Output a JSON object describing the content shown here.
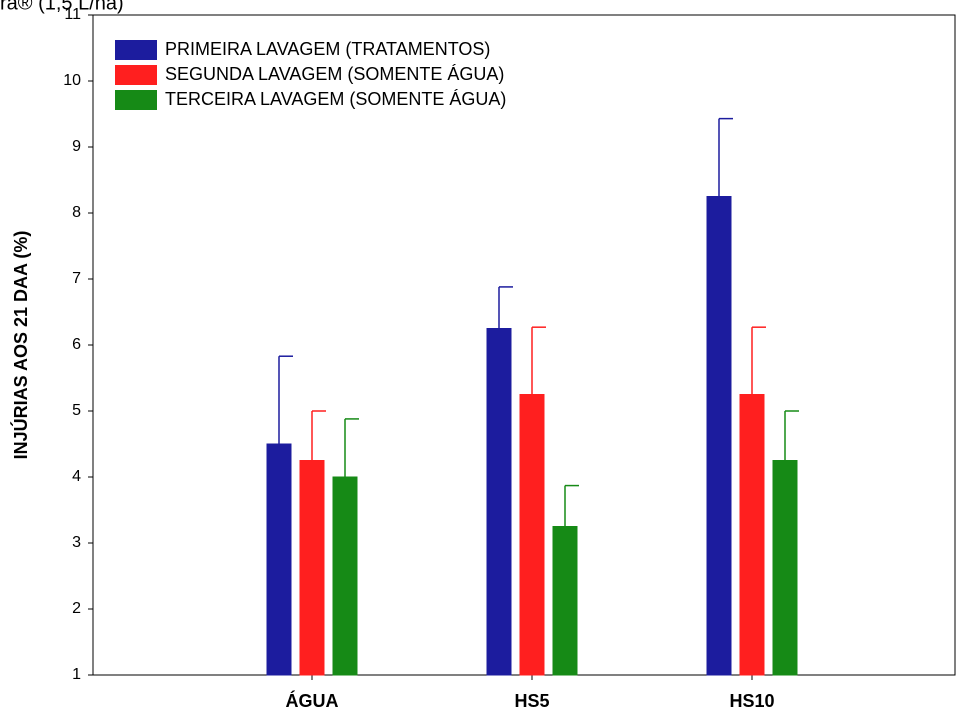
{
  "chart_data": {
    "type": "bar",
    "title": "ra® (1,5 L/ha)",
    "y_label": "INJÚRIAS AOS 21 DAA (%)",
    "categories": [
      "ÁGUA",
      "HS5",
      "HS10"
    ],
    "series": [
      {
        "name": "PRIMEIRA LAVAGEM (TRATAMENTOS)",
        "color": "#1c1c9e",
        "values": [
          4.5,
          6.25,
          8.25
        ],
        "errors": [
          1.33,
          0.63,
          1.18
        ]
      },
      {
        "name": "SEGUNDA LAVAGEM (SOMENTE ÁGUA)",
        "color": "#ff1f1f",
        "values": [
          4.25,
          5.25,
          5.25
        ],
        "errors": [
          0.75,
          1.02,
          1.02
        ]
      },
      {
        "name": "TERCEIRA LAVAGEM (SOMENTE ÁGUA)",
        "color": "#168a16",
        "values": [
          4.0,
          3.25,
          4.25
        ],
        "errors": [
          0.88,
          0.62,
          0.75
        ]
      }
    ],
    "ylim": [
      1,
      11
    ],
    "yticks": [
      1,
      2,
      3,
      4,
      5,
      6,
      7,
      8,
      9,
      10,
      11
    ],
    "legend": "upper left",
    "grid": false
  }
}
